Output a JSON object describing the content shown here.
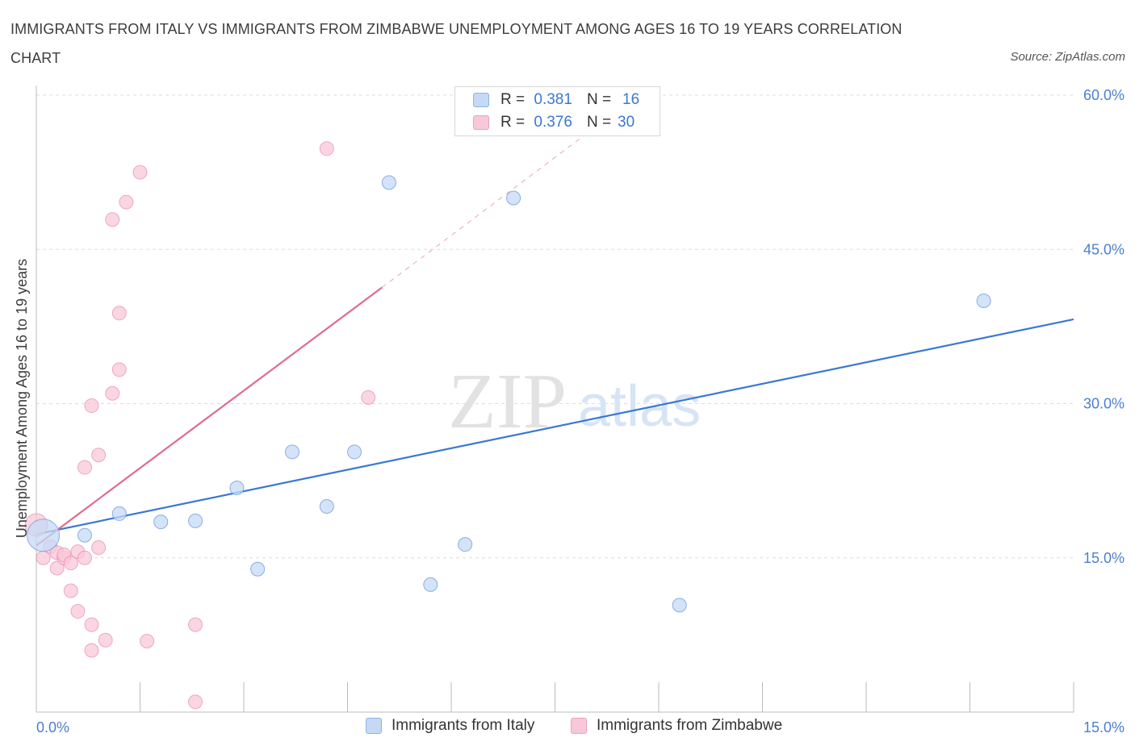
{
  "title": "IMMIGRANTS FROM ITALY VS IMMIGRANTS FROM ZIMBABWE UNEMPLOYMENT AMONG AGES 16 TO 19 YEARS CORRELATION CHART",
  "source": "Source: ZipAtlas.com",
  "colors": {
    "italy": "#6f9fe0",
    "italy_fill": "#c5d9f5",
    "zimbabwe": "#e87aa0",
    "zimbabwe_fill": "#f8c8d8",
    "trend_italy": "#3a78d4",
    "trend_zimbabwe": "#e06a92",
    "axis_text": "#4a7fd0"
  },
  "legend": {
    "italy": {
      "r_label": "R =",
      "r_value": "0.381",
      "n_label": "N =",
      "n_value": "16"
    },
    "zimbabwe": {
      "r_label": "R =",
      "r_value": "0.376",
      "n_label": "N =",
      "n_value": "30"
    }
  },
  "bottom_legend": {
    "italy": "Immigrants from Italy",
    "zimbabwe": "Immigrants from Zimbabwe"
  },
  "watermark": {
    "zip": "ZIP",
    "atlas": "atlas"
  },
  "chart_data": {
    "type": "scatter",
    "title": "IMMIGRANTS FROM ITALY VS IMMIGRANTS FROM ZIMBABWE UNEMPLOYMENT AMONG AGES 16 TO 19 YEARS CORRELATION CHART",
    "xlabel": "",
    "ylabel": "Unemployment Among Ages 16 to 19 years",
    "xlim": [
      0,
      15
    ],
    "ylim": [
      0,
      60
    ],
    "x_tick_labels": [
      "0.0%",
      "15.0%"
    ],
    "y_ticks": [
      15,
      30,
      45,
      60
    ],
    "y_tick_labels": [
      "15.0%",
      "30.0%",
      "45.0%",
      "60.0%"
    ],
    "grid": true,
    "series": [
      {
        "name": "Immigrants from Italy",
        "points": [
          [
            0.1,
            17.2
          ],
          [
            0.7,
            17.2
          ],
          [
            1.2,
            19.3
          ],
          [
            1.8,
            18.5
          ],
          [
            2.3,
            18.6
          ],
          [
            2.9,
            21.8
          ],
          [
            3.2,
            13.9
          ],
          [
            3.7,
            25.3
          ],
          [
            4.2,
            20.0
          ],
          [
            4.6,
            25.3
          ],
          [
            5.1,
            51.5
          ],
          [
            5.7,
            12.4
          ],
          [
            6.2,
            16.3
          ],
          [
            6.9,
            50.0
          ],
          [
            9.3,
            10.4
          ],
          [
            13.7,
            40.0
          ]
        ],
        "trend": {
          "x": [
            0,
            15
          ],
          "y": [
            17.3,
            38.2
          ]
        }
      },
      {
        "name": "Immigrants from Zimbabwe",
        "points": [
          [
            0.0,
            18.2
          ],
          [
            0.1,
            15.0
          ],
          [
            0.2,
            16.1
          ],
          [
            0.3,
            15.5
          ],
          [
            0.3,
            14.0
          ],
          [
            0.4,
            15.0
          ],
          [
            0.4,
            15.3
          ],
          [
            0.5,
            14.5
          ],
          [
            0.5,
            11.8
          ],
          [
            0.6,
            9.8
          ],
          [
            0.6,
            15.6
          ],
          [
            0.7,
            23.8
          ],
          [
            0.7,
            15.0
          ],
          [
            0.8,
            6.0
          ],
          [
            0.8,
            8.5
          ],
          [
            0.8,
            29.8
          ],
          [
            0.9,
            25.0
          ],
          [
            0.9,
            16.0
          ],
          [
            1.0,
            7.0
          ],
          [
            1.1,
            47.9
          ],
          [
            1.1,
            31.0
          ],
          [
            1.2,
            38.8
          ],
          [
            1.2,
            33.3
          ],
          [
            1.3,
            49.6
          ],
          [
            1.5,
            52.5
          ],
          [
            1.6,
            6.9
          ],
          [
            2.3,
            1.0
          ],
          [
            2.3,
            8.5
          ],
          [
            4.2,
            54.8
          ],
          [
            4.8,
            30.6
          ]
        ],
        "trend": {
          "x": [
            0.0,
            5.0
          ],
          "y": [
            16.2,
            41.3
          ]
        },
        "trend_dashed": {
          "x": [
            5.0,
            8.3
          ],
          "y": [
            41.3,
            58.0
          ]
        }
      }
    ]
  }
}
